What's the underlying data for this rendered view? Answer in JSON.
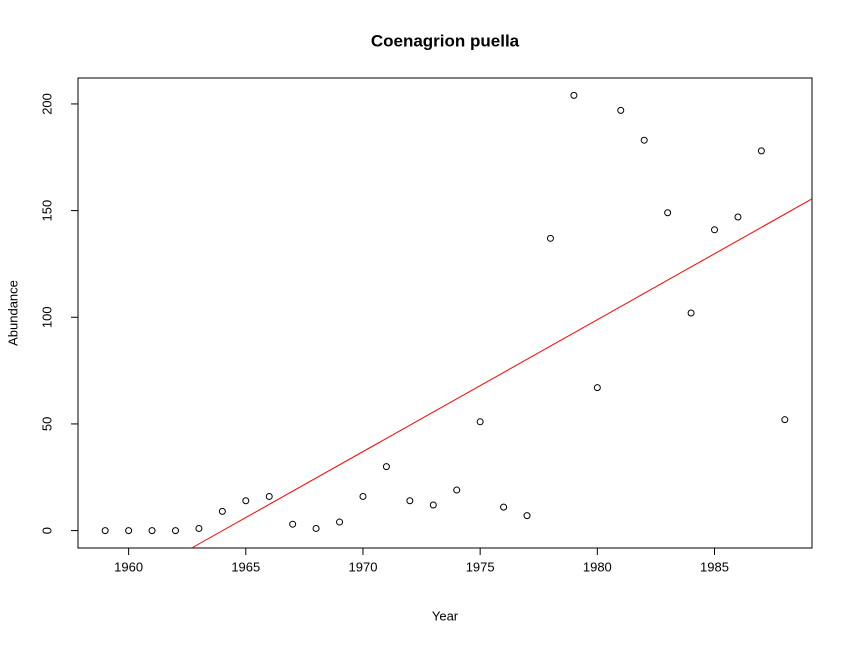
{
  "chart_data": {
    "type": "scatter",
    "title": "Coenagrion puella",
    "x_label": "Year",
    "y_label": "Abundance",
    "x": [
      1959,
      1960,
      1961,
      1962,
      1963,
      1964,
      1965,
      1966,
      1967,
      1968,
      1969,
      1970,
      1971,
      1972,
      1973,
      1974,
      1975,
      1976,
      1977,
      1978,
      1979,
      1980,
      1981,
      1982,
      1983,
      1984,
      1985,
      1986,
      1987,
      1988
    ],
    "values": [
      0,
      0,
      0,
      0,
      1,
      9,
      14,
      16,
      3,
      1,
      4,
      16,
      30,
      14,
      12,
      19,
      51,
      11,
      7,
      137,
      204,
      67,
      197,
      183,
      149,
      102,
      141,
      147,
      178,
      52
    ],
    "color": "#000000",
    "trend": {
      "x": [
        1962.69,
        1989.16
      ],
      "values": [
        -8.16,
        155.5
      ],
      "color": "#ff0000"
    },
    "xlim": [
      1957.84,
      1989.16
    ],
    "xticks": [
      1960,
      1965,
      1970,
      1975,
      1980,
      1985
    ],
    "ylim": [
      -8.16,
      212.16
    ],
    "yticks": [
      0,
      50,
      100,
      150,
      200
    ]
  }
}
